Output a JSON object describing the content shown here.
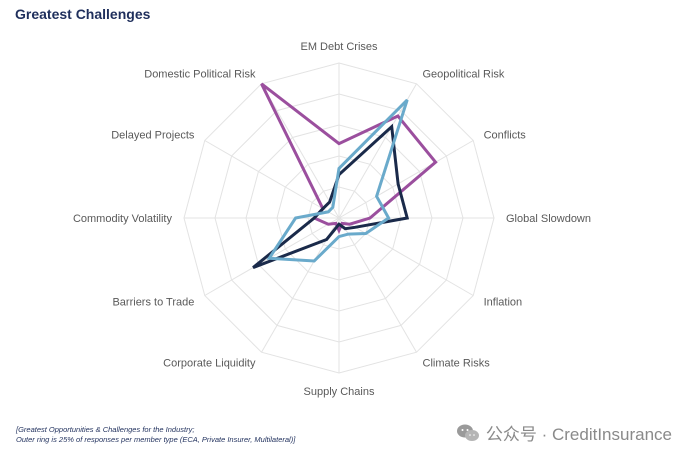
{
  "title": "Greatest Challenges",
  "chart_data": {
    "type": "radar",
    "title": "Greatest Challenges",
    "rmax": 25,
    "ring_count": 5,
    "categories": [
      "EM Debt Crises",
      "Geopolitical Risk",
      "Conflicts",
      "Global Slowdown",
      "Inflation",
      "Climate Risks",
      "Supply Chains",
      "Corporate Liquidity",
      "Barriers to Trade",
      "Commodity Volatility",
      "Delayed Projects",
      "Domestic Political Risk"
    ],
    "series": [
      {
        "color": "#9b4f9e",
        "values": [
          12,
          19,
          18,
          5,
          2,
          1,
          2,
          1,
          2,
          4,
          3,
          25
        ]
      },
      {
        "color": "#1a2a4a",
        "values": [
          7,
          17,
          11,
          11,
          3,
          2,
          1,
          4,
          16,
          4,
          3,
          3
        ]
      },
      {
        "color": "#6aaacb",
        "values": [
          8,
          22,
          7,
          8,
          5,
          3,
          3,
          8,
          13,
          7,
          2,
          2
        ]
      }
    ]
  },
  "footnote": {
    "line1": "[Greatest Opportunities & Challenges for the Industry;",
    "line2": "Outer ring is 25% of responses per member type (ECA, Private Insurer, Multilateral)]"
  },
  "watermark": {
    "text": "公众号 · CreditInsurance",
    "icon": "wechat-icon"
  }
}
